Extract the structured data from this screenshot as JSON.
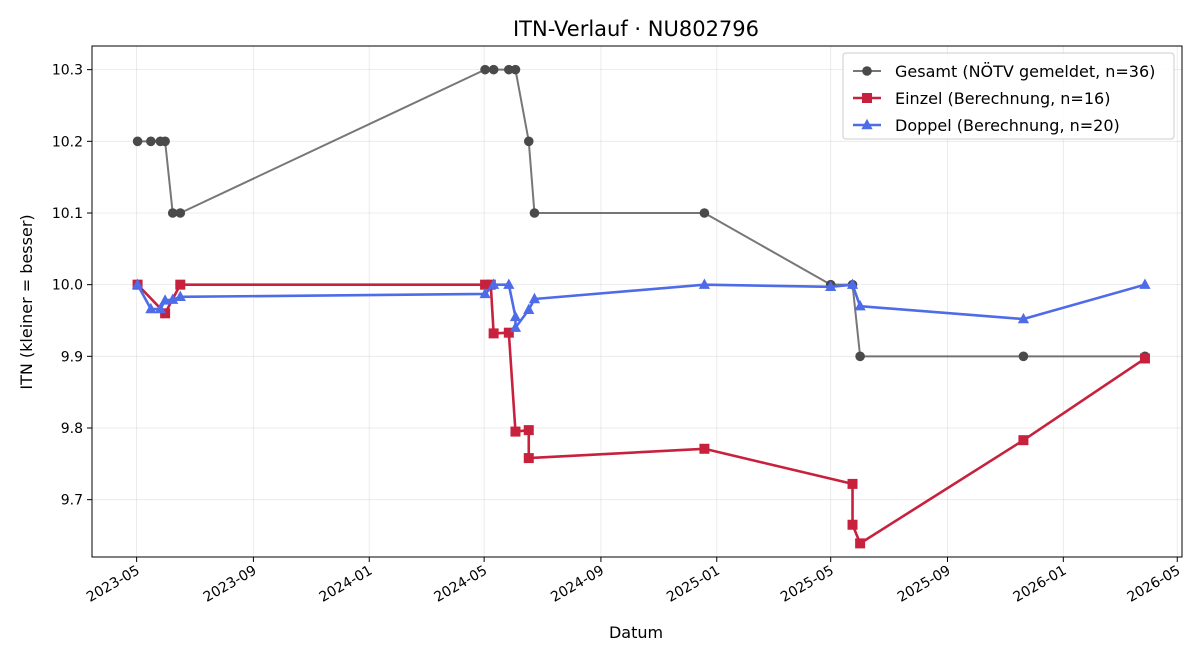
{
  "chart_data": {
    "type": "line",
    "title": "ITN-Verlauf · NU802796",
    "xlabel": "Datum",
    "ylabel": "ITN  (kleiner = besser)",
    "xlim": [
      "2023-03-15",
      "2026-05-06"
    ],
    "ylim": [
      9.62,
      10.333
    ],
    "grid": true,
    "legend_position": "top-right",
    "x_ticks": [
      {
        "date": "2023-05-01",
        "label": "2023-05"
      },
      {
        "date": "2023-09-01",
        "label": "2023-09"
      },
      {
        "date": "2024-01-01",
        "label": "2024-01"
      },
      {
        "date": "2024-05-01",
        "label": "2024-05"
      },
      {
        "date": "2024-09-01",
        "label": "2024-09"
      },
      {
        "date": "2025-01-01",
        "label": "2025-01"
      },
      {
        "date": "2025-05-01",
        "label": "2025-05"
      },
      {
        "date": "2025-09-01",
        "label": "2025-09"
      },
      {
        "date": "2026-01-01",
        "label": "2026-01"
      },
      {
        "date": "2026-05-01",
        "label": "2026-05"
      }
    ],
    "y_ticks": [
      {
        "value": 9.7,
        "label": "9.7"
      },
      {
        "value": 9.8,
        "label": "9.8"
      },
      {
        "value": 9.9,
        "label": "9.9"
      },
      {
        "value": 10.0,
        "label": "10.0"
      },
      {
        "value": 10.1,
        "label": "10.1"
      },
      {
        "value": 10.2,
        "label": "10.2"
      },
      {
        "value": 10.3,
        "label": "10.3"
      }
    ],
    "series": [
      {
        "name": "Gesamt (NÖTV gemeldet, n=36)",
        "color": "#4a4a4a",
        "marker": "circle",
        "points": [
          {
            "x": "2023-05-02",
            "y": 10.2
          },
          {
            "x": "2023-05-16",
            "y": 10.2
          },
          {
            "x": "2023-05-26",
            "y": 10.2
          },
          {
            "x": "2023-05-31",
            "y": 10.2
          },
          {
            "x": "2023-06-08",
            "y": 10.1
          },
          {
            "x": "2023-06-16",
            "y": 10.1
          },
          {
            "x": "2024-05-02",
            "y": 10.3
          },
          {
            "x": "2024-05-11",
            "y": 10.3
          },
          {
            "x": "2024-05-27",
            "y": 10.3
          },
          {
            "x": "2024-06-03",
            "y": 10.3
          },
          {
            "x": "2024-06-17",
            "y": 10.2
          },
          {
            "x": "2024-06-23",
            "y": 10.1
          },
          {
            "x": "2024-12-19",
            "y": 10.1
          },
          {
            "x": "2025-05-01",
            "y": 10.0
          },
          {
            "x": "2025-05-24",
            "y": 10.0
          },
          {
            "x": "2025-06-01",
            "y": 9.9
          },
          {
            "x": "2025-11-20",
            "y": 9.9
          },
          {
            "x": "2026-03-28",
            "y": 9.9
          }
        ]
      },
      {
        "name": "Einzel (Berechnung, n=16)",
        "color": "#c8213d",
        "marker": "square",
        "points": [
          {
            "x": "2023-05-02",
            "y": 10.0
          },
          {
            "x": "2023-05-31",
            "y": 9.96
          },
          {
            "x": "2023-06-16",
            "y": 10.0
          },
          {
            "x": "2024-05-02",
            "y": 10.0
          },
          {
            "x": "2024-05-08",
            "y": 10.0
          },
          {
            "x": "2024-05-11",
            "y": 9.932
          },
          {
            "x": "2024-05-27",
            "y": 9.933
          },
          {
            "x": "2024-06-03",
            "y": 9.795
          },
          {
            "x": "2024-06-17",
            "y": 9.797
          },
          {
            "x": "2024-06-17",
            "y": 9.758
          },
          {
            "x": "2024-12-19",
            "y": 9.771
          },
          {
            "x": "2025-05-24",
            "y": 9.722
          },
          {
            "x": "2025-05-24",
            "y": 9.665
          },
          {
            "x": "2025-06-01",
            "y": 9.639
          },
          {
            "x": "2025-11-20",
            "y": 9.783
          },
          {
            "x": "2026-03-28",
            "y": 9.897
          }
        ]
      },
      {
        "name": "Doppel (Berechnung, n=20)",
        "color": "#4e6ce8",
        "marker": "triangle",
        "points": [
          {
            "x": "2023-05-02",
            "y": 10.0
          },
          {
            "x": "2023-05-16",
            "y": 9.966
          },
          {
            "x": "2023-05-26",
            "y": 9.966
          },
          {
            "x": "2023-05-31",
            "y": 9.978
          },
          {
            "x": "2023-06-08",
            "y": 9.979
          },
          {
            "x": "2023-06-16",
            "y": 9.983
          },
          {
            "x": "2024-05-02",
            "y": 9.987
          },
          {
            "x": "2024-05-11",
            "y": 10.0
          },
          {
            "x": "2024-05-27",
            "y": 10.0
          },
          {
            "x": "2024-06-03",
            "y": 9.955
          },
          {
            "x": "2024-06-03",
            "y": 9.94
          },
          {
            "x": "2024-06-17",
            "y": 9.965
          },
          {
            "x": "2024-06-23",
            "y": 9.98
          },
          {
            "x": "2024-12-19",
            "y": 10.0
          },
          {
            "x": "2025-05-01",
            "y": 9.997
          },
          {
            "x": "2025-05-24",
            "y": 10.0
          },
          {
            "x": "2025-06-01",
            "y": 9.97
          },
          {
            "x": "2025-11-20",
            "y": 9.952
          },
          {
            "x": "2026-03-28",
            "y": 10.0
          }
        ]
      }
    ]
  }
}
